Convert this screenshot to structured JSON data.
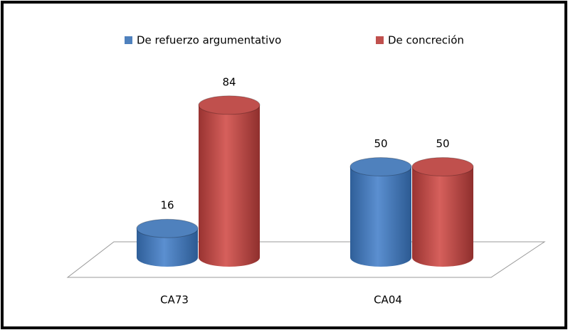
{
  "chart_data": {
    "type": "bar3d",
    "categories": [
      "CA73",
      "CA04"
    ],
    "series": [
      {
        "name": "De refuerzo argumentativo",
        "color": "#4f81bd",
        "values": [
          16,
          50
        ]
      },
      {
        "name": "De concreción",
        "color": "#c0504d",
        "values": [
          84,
          50
        ]
      }
    ],
    "legend": "top"
  }
}
